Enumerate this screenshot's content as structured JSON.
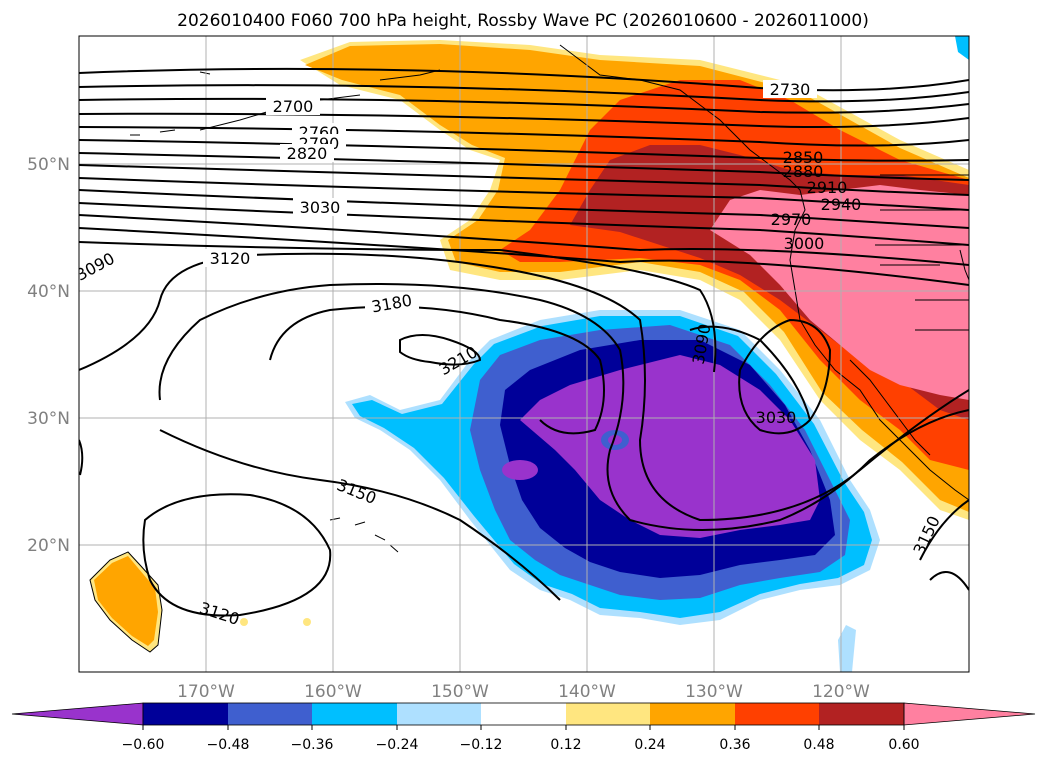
{
  "title": "2026010400 F060 700 hPa height, Rossby Wave PC (2026010600 - 2026011000)",
  "map": {
    "lat_labels": [
      "50°N",
      "40°N",
      "30°N",
      "20°N"
    ],
    "lon_labels": [
      "170°W",
      "160°W",
      "150°W",
      "140°W",
      "130°W",
      "120°W"
    ],
    "contour_labels": [
      "2700",
      "2730",
      "2760",
      "2790",
      "2820",
      "2850",
      "2880",
      "2910",
      "2940",
      "2970",
      "3000",
      "3030",
      "3090",
      "3120",
      "3180",
      "3210",
      "3090",
      "3030",
      "3150",
      "3120",
      "3150"
    ],
    "colors": {
      "land": "#000000",
      "contour": "#000000",
      "grid": "#b0b0b0"
    }
  },
  "colorbar": {
    "tick_labels": [
      "−0.60",
      "−0.48",
      "−0.36",
      "−0.24",
      "−0.12",
      "0.12",
      "0.24",
      "0.36",
      "0.48",
      "0.60"
    ],
    "colors": [
      "#9933cc",
      "#000099",
      "#3f5fcf",
      "#00bfff",
      "#aee0ff",
      "#ffffff",
      "#ffe680",
      "#ffa500",
      "#ff4000",
      "#b22222",
      "#ff80a0"
    ]
  }
}
